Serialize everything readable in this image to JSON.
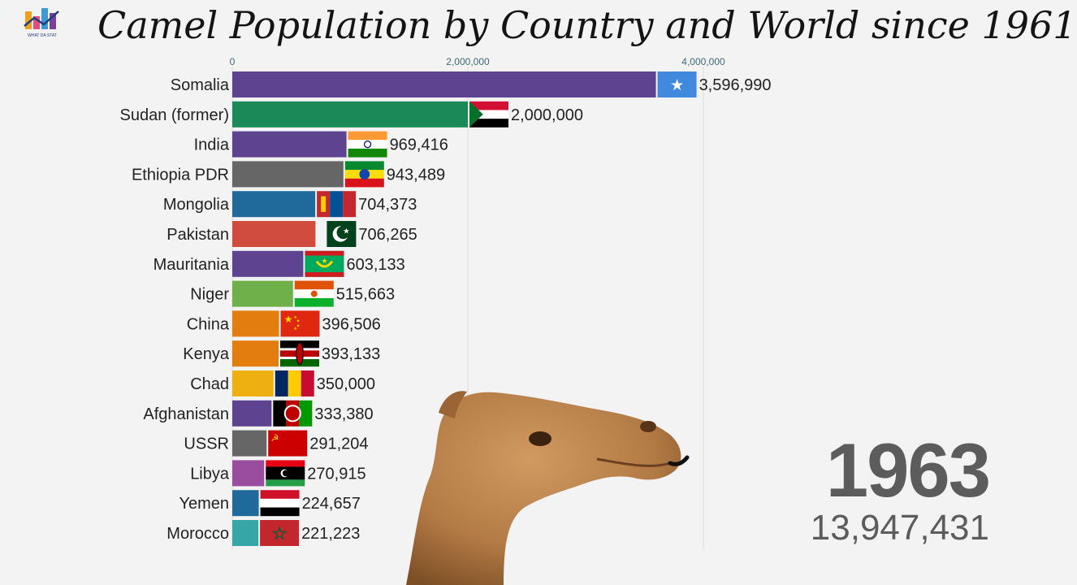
{
  "header": {
    "title": "Camel Population by Country and World since 1961",
    "logo_icon": "bar-chart-logo-icon",
    "logo_text": "WHAT DA STAT"
  },
  "chart_data": {
    "type": "bar",
    "orientation": "horizontal",
    "title": "Camel Population by Country and World since 1961",
    "xlim": [
      0,
      4000000
    ],
    "ticks": [
      {
        "value": 0,
        "label": "0"
      },
      {
        "value": 2000000,
        "label": "2,000,000"
      },
      {
        "value": 4000000,
        "label": "4,000,000"
      }
    ],
    "grid": true,
    "categories": [
      "Somalia",
      "Sudan (former)",
      "India",
      "Ethiopia PDR",
      "Mongolia",
      "Pakistan",
      "Mauritania",
      "Niger",
      "China",
      "Kenya",
      "Chad",
      "Afghanistan",
      "USSR",
      "Libya",
      "Yemen",
      "Morocco"
    ],
    "values": [
      3596990,
      2000000,
      969416,
      943489,
      704373,
      706265,
      603133,
      515663,
      396506,
      393133,
      350000,
      333380,
      291204,
      270915,
      224657,
      221223
    ],
    "value_labels": [
      "3,596,990",
      "2,000,000",
      "969,416",
      "943,489",
      "704,373",
      "706,265",
      "603,133",
      "515,663",
      "396,506",
      "393,133",
      "350,000",
      "333,380",
      "291,204",
      "270,915",
      "224,657",
      "221,223"
    ],
    "colors": [
      "#5e4490",
      "#1c8a58",
      "#5e4490",
      "#666666",
      "#1f6a9a",
      "#cf4c3e",
      "#5e4490",
      "#70b04a",
      "#e47d10",
      "#e47d10",
      "#eeb010",
      "#5e4490",
      "#666666",
      "#9a4c9f",
      "#1f6a9a",
      "#36a6a6"
    ],
    "flags": [
      "flag-somalia-icon",
      "flag-sudan-icon",
      "flag-india-icon",
      "flag-ethiopia-icon",
      "flag-mongolia-icon",
      "flag-pakistan-icon",
      "flag-mauritania-icon",
      "flag-niger-icon",
      "flag-china-icon",
      "flag-kenya-icon",
      "flag-chad-icon",
      "flag-afghanistan-icon",
      "flag-ussr-icon",
      "flag-libya-icon",
      "flag-yemen-icon",
      "flag-morocco-icon"
    ]
  },
  "year": "1963",
  "world_total": "13,947,431",
  "decoration": {
    "camel_icon": "camel-head-icon"
  }
}
